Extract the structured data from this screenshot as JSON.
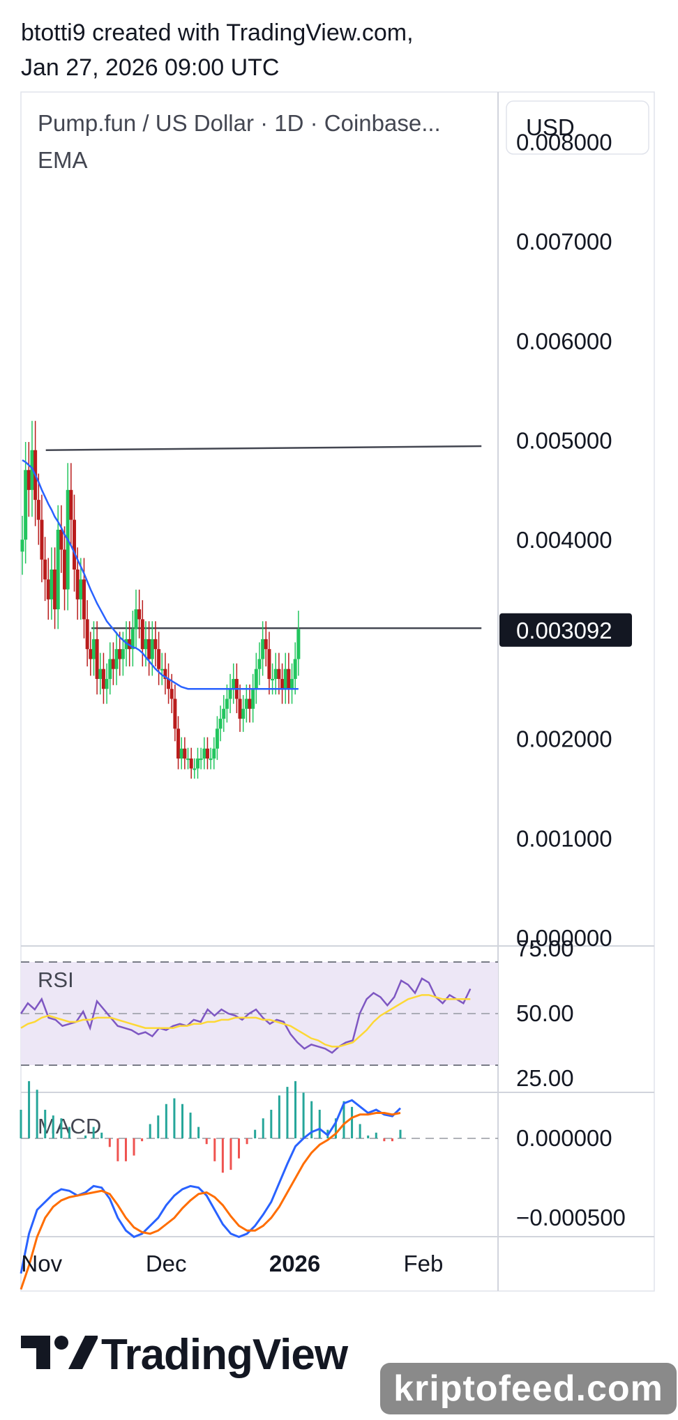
{
  "header": {
    "line1": "btotti9 created with TradingView.com,",
    "line2": "Jan 27, 2026 09:00 UTC"
  },
  "legend": {
    "symbol": "Pump.fun / US Dollar · 1D · Coinbase...",
    "indicator": "EMA"
  },
  "currency_button": "USD",
  "colors": {
    "up": "#22c55e",
    "down": "#b91c1c",
    "ema": "#2962ff",
    "rsi": "#7e57c2",
    "rsi_ma": "#fdd835",
    "macd": "#2962ff",
    "signal": "#ff6d00",
    "hist_pos": "#26a69a",
    "hist_neg": "#ef5350",
    "price_tag_bg": "#131722",
    "rsi_band": "#ede7f6"
  },
  "rsi_pane": {
    "label": "RSI",
    "ticks": [
      "75.00",
      "50.00",
      "25.00"
    ]
  },
  "macd_pane": {
    "label": "MACD",
    "ticks": [
      "0.000000",
      "−0.000500"
    ]
  },
  "footer": {
    "logo_text": "TradingView",
    "watermark": "kriptofeed.com"
  },
  "chart_data": {
    "type": "candlestick",
    "title": "Pump.fun / US Dollar · 1D · Coinbase...",
    "y_ticks": [
      "0.008000",
      "0.007000",
      "0.006000",
      "0.005000",
      "0.004000",
      "0.003092",
      "0.002000",
      "0.001000",
      "0.000000"
    ],
    "ylim": [
      0,
      0.0085
    ],
    "x_ticks": [
      {
        "label": "Nov",
        "day": 3,
        "bold": false
      },
      {
        "label": "Dec",
        "day": 33,
        "bold": false
      },
      {
        "label": "2026",
        "day": 64,
        "bold": true
      },
      {
        "label": "Feb",
        "day": 95,
        "bold": false
      }
    ],
    "x_start_day": -2,
    "x_end_day": 113,
    "last_price": "0.003092",
    "horizontal_lines": [
      {
        "from_day": 4,
        "to_day": 109,
        "value": 0.0049,
        "value_end": 0.00494
      },
      {
        "from_day": 15,
        "to_day": 109,
        "value": 0.00311,
        "value_end": 0.00311
      }
    ],
    "close": [
      0.004,
      0.0047,
      0.0045,
      0.0049,
      0.0044,
      0.0042,
      0.0038,
      0.0036,
      0.0034,
      0.0037,
      0.0033,
      0.0041,
      0.0039,
      0.0035,
      0.0045,
      0.0042,
      0.0037,
      0.0034,
      0.0036,
      0.0032,
      0.0029,
      0.0028,
      0.003,
      0.0026,
      0.0027,
      0.0025,
      0.0026,
      0.0028,
      0.0027,
      0.0029,
      0.0028,
      0.0029,
      0.003,
      0.0029,
      0.0031,
      0.0033,
      0.0032,
      0.0029,
      0.003,
      0.0028,
      0.003,
      0.0029,
      0.0027,
      0.0027,
      0.0026,
      0.0025,
      0.0024,
      0.0021,
      0.0018,
      0.0019,
      0.0018,
      0.0018,
      0.0017,
      0.0017,
      0.0018,
      0.0018,
      0.0019,
      0.0018,
      0.0018,
      0.0019,
      0.0021,
      0.0022,
      0.0023,
      0.0024,
      0.0025,
      0.0026,
      0.0024,
      0.0022,
      0.0023,
      0.0024,
      0.0023,
      0.0025,
      0.0027,
      0.0028,
      0.003,
      0.0029,
      0.0026,
      0.0026,
      0.0027,
      0.0026,
      0.0025,
      0.0027,
      0.0025,
      0.0026,
      0.0028,
      0.0031
    ],
    "ema": [
      0.0048,
      0.00478,
      0.00475,
      0.00472,
      0.00465,
      0.00458,
      0.0045,
      0.00443,
      0.00436,
      0.0043,
      0.00423,
      0.00418,
      0.00412,
      0.00405,
      0.004,
      0.00394,
      0.00387,
      0.0038,
      0.00373,
      0.00366,
      0.00358,
      0.0035,
      0.00343,
      0.00336,
      0.0033,
      0.00324,
      0.00318,
      0.00314,
      0.0031,
      0.00306,
      0.00302,
      0.00299,
      0.00296,
      0.00294,
      0.00292,
      0.00291,
      0.00289,
      0.00286,
      0.00282,
      0.00278,
      0.00274,
      0.0027,
      0.00267,
      0.00264,
      0.00262,
      0.0026,
      0.00258,
      0.00256,
      0.00254,
      0.00252,
      0.00251,
      0.0025,
      0.0025,
      0.0025,
      0.0025,
      0.0025,
      0.0025,
      0.0025,
      0.0025,
      0.0025,
      0.0025,
      0.0025,
      0.0025,
      0.0025,
      0.0025,
      0.0025,
      0.0025,
      0.0025,
      0.0025,
      0.0025,
      0.0025,
      0.0025,
      0.0025,
      0.0025,
      0.0025,
      0.0025,
      0.0025,
      0.0025,
      0.0025,
      0.0025,
      0.0025,
      0.0025,
      0.0025,
      0.0025,
      0.0025,
      0.0025
    ],
    "rsi": [
      50,
      55,
      52,
      57,
      48,
      47,
      44,
      45,
      46,
      51,
      43,
      56,
      52,
      48,
      44,
      43,
      42,
      40,
      41,
      39,
      43,
      42,
      44,
      45,
      44,
      47,
      46,
      52,
      49,
      52,
      50,
      49,
      47,
      50,
      52,
      48,
      45,
      47,
      46,
      40,
      36,
      33,
      35,
      34,
      33,
      31,
      34,
      36,
      37,
      50,
      57,
      60,
      58,
      54,
      58,
      66,
      64,
      60,
      67,
      65,
      58,
      55,
      59,
      57,
      55,
      62
    ],
    "rsi_ma": [
      43,
      45,
      46,
      48,
      49,
      48,
      47,
      46,
      46,
      47,
      47,
      48,
      48,
      48,
      47,
      46,
      45,
      44,
      43,
      43,
      43,
      43,
      43,
      44,
      44,
      45,
      45,
      46,
      46,
      47,
      47,
      48,
      48,
      48,
      48,
      47,
      47,
      46,
      45,
      44,
      42,
      40,
      38,
      37,
      35,
      34,
      34,
      35,
      36,
      39,
      42,
      46,
      49,
      51,
      53,
      55,
      57,
      58,
      59,
      59,
      58,
      57,
      57,
      57,
      57,
      57
    ],
    "macd": [
      -0.00085,
      -0.0006,
      -0.00045,
      -0.0004,
      -0.00035,
      -0.00032,
      -0.00033,
      -0.00036,
      -0.00034,
      -0.0003,
      -0.00031,
      -0.00038,
      -0.0005,
      -0.00058,
      -0.00062,
      -0.0006,
      -0.00055,
      -0.0005,
      -0.00042,
      -0.00036,
      -0.00032,
      -0.0003,
      -0.00031,
      -0.00036,
      -0.00045,
      -0.00054,
      -0.0006,
      -0.00062,
      -0.0006,
      -0.00055,
      -0.00048,
      -0.0004,
      -0.00028,
      -0.00016,
      -5e-05,
      0.0,
      4e-05,
      6e-05,
      2e-05,
      0.0001,
      0.00022,
      0.00024,
      0.0002,
      0.00016,
      0.00018,
      0.00015,
      0.00014,
      0.00019
    ],
    "signal": [
      -0.00095,
      -0.0008,
      -0.00062,
      -0.0005,
      -0.00043,
      -0.00039,
      -0.00037,
      -0.00036,
      -0.00035,
      -0.00034,
      -0.00033,
      -0.00035,
      -0.00042,
      -0.0005,
      -0.00056,
      -0.00059,
      -0.0006,
      -0.00058,
      -0.00054,
      -0.0005,
      -0.00044,
      -0.00039,
      -0.00035,
      -0.00034,
      -0.00037,
      -0.00042,
      -0.00049,
      -0.00055,
      -0.00058,
      -0.00058,
      -0.00055,
      -0.0005,
      -0.00043,
      -0.00034,
      -0.00025,
      -0.00016,
      -9e-05,
      -4e-05,
      -1e-05,
      3e-05,
      9e-05,
      0.00013,
      0.00015,
      0.00015,
      0.00016,
      0.00016,
      0.00015,
      0.00016
    ]
  }
}
